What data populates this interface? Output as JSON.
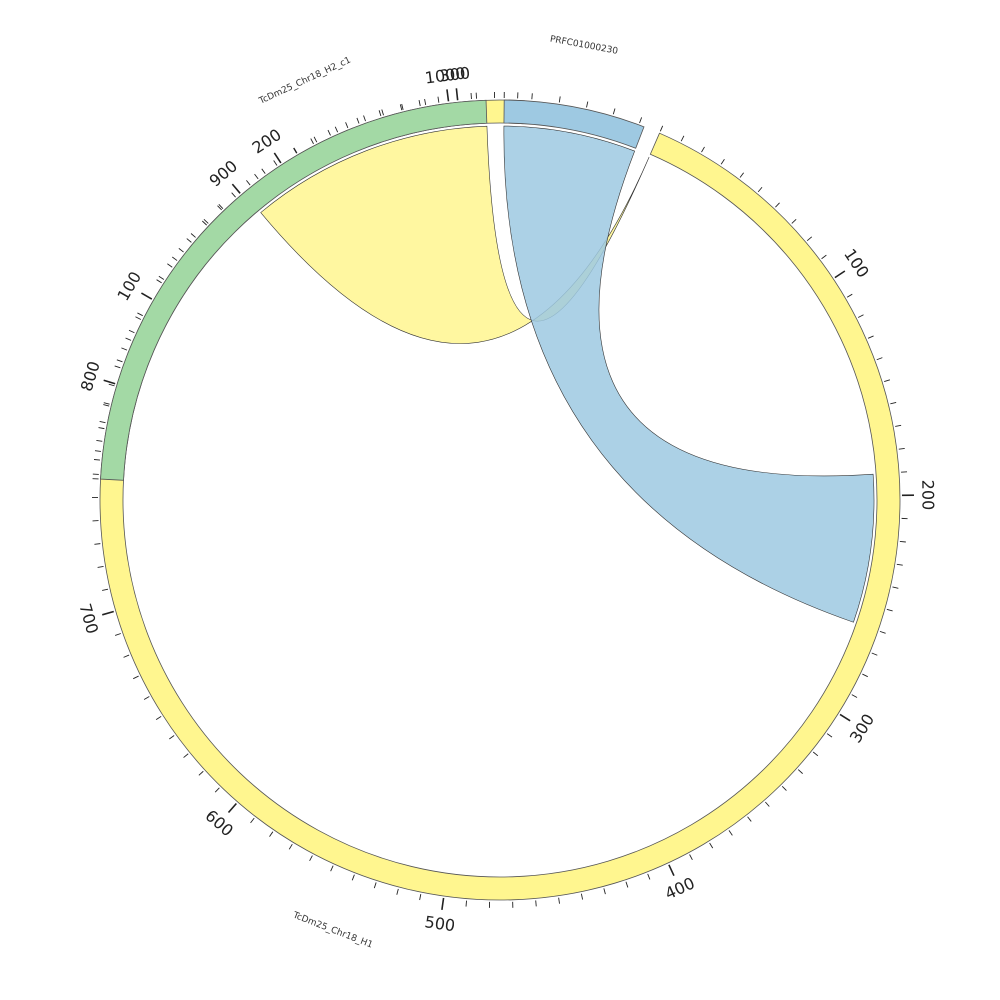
{
  "chart_data": {
    "type": "chord",
    "units": "kb",
    "segments": [
      {
        "id": "H1",
        "name": "TcDm25_Chr18_H1",
        "length": 1033,
        "color": "#FFF68F",
        "label_at": 540
      },
      {
        "id": "H2",
        "name": "TcDm25_Chr18_H2_c1",
        "length": 315,
        "color": "#A3D9A5",
        "label_at": 230
      },
      {
        "id": "PRFC",
        "name": "PRFC01000230",
        "length": 52,
        "color": "#9EC9E2",
        "label_at": 25
      }
    ],
    "major_tick_every": 100,
    "minor_tick_every": 10,
    "links": [
      {
        "from": {
          "segment": "H1",
          "start": 0,
          "end": 0
        },
        "to": {
          "segment": "H2",
          "start": 175,
          "end": 315
        },
        "color": "#FFF68F"
      },
      {
        "from": {
          "segment": "PRFC",
          "start": 0,
          "end": 52
        },
        "to": {
          "segment": "H1",
          "start": 190,
          "end": 260
        },
        "color": "#9EC9E2"
      }
    ]
  }
}
